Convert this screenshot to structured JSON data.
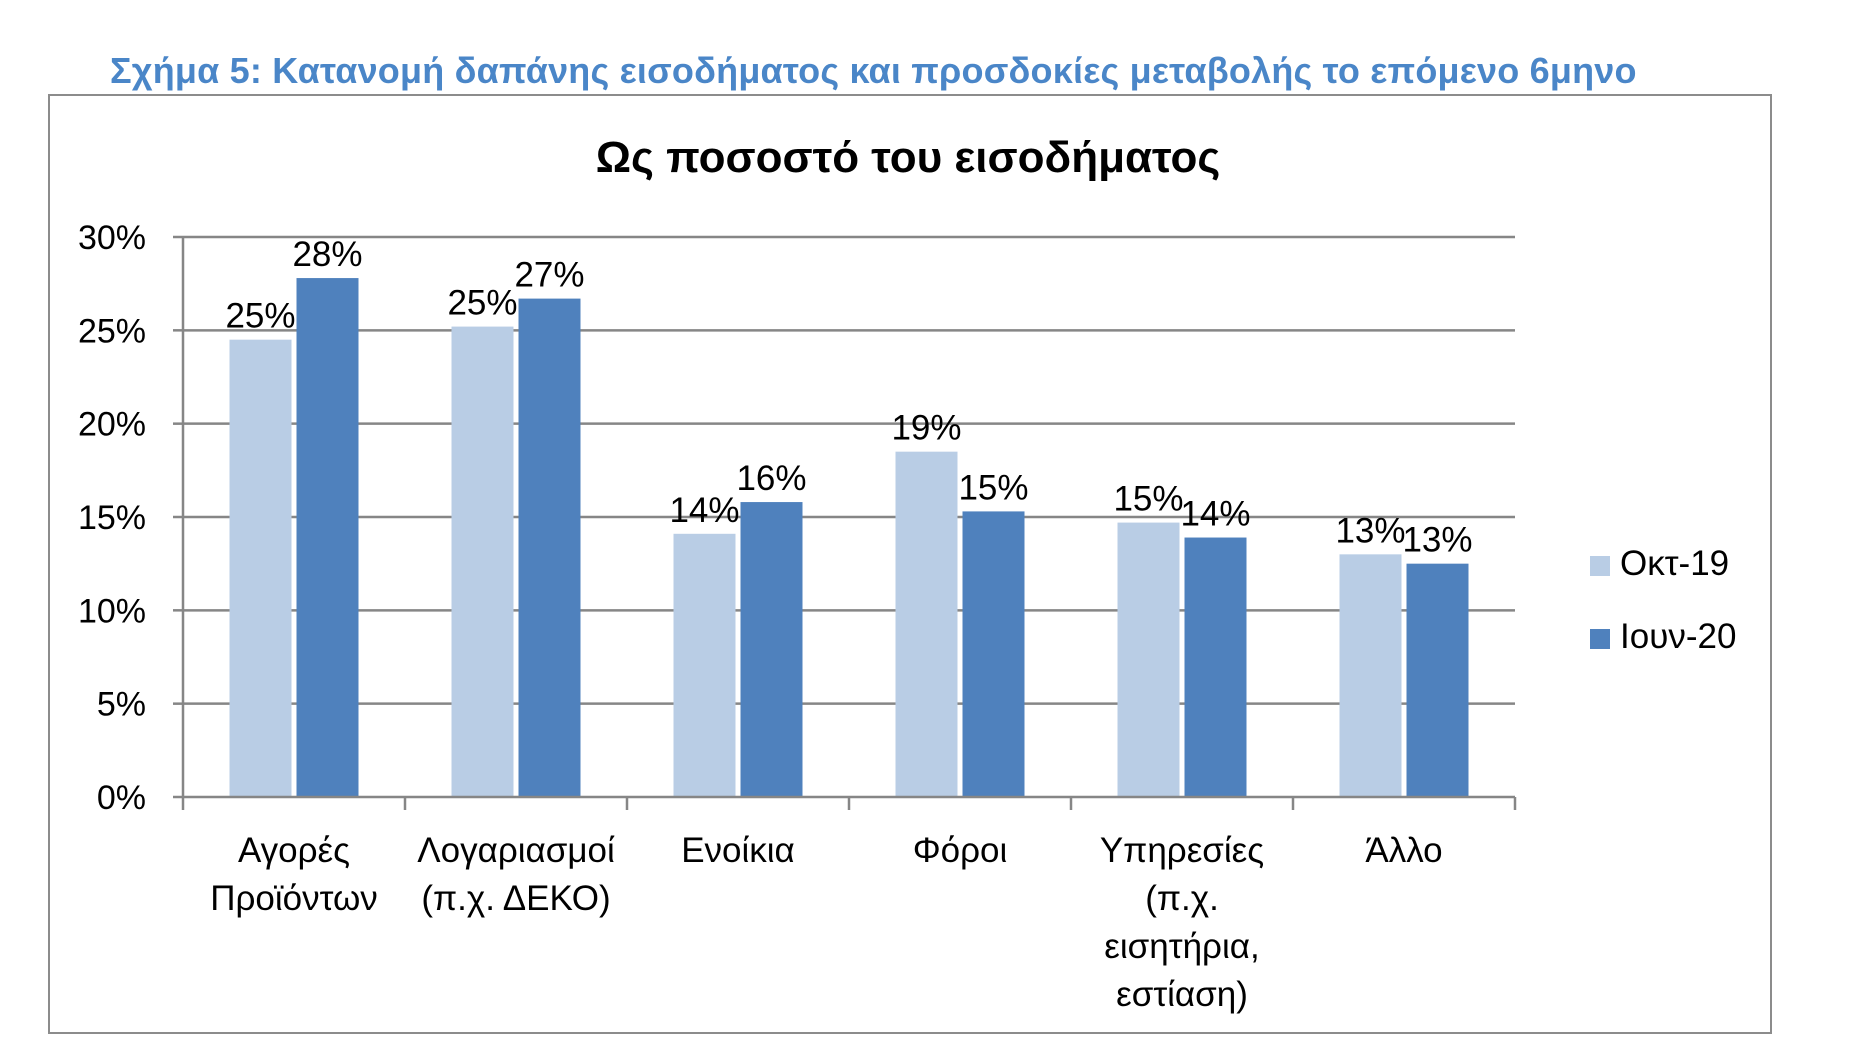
{
  "figure_caption": "Σχήμα 5: Κατανομή δαπάνης εισοδήματος και προσδοκίες μεταβολής το επόμενο 6μηνο",
  "caption_color": "#4a86c8",
  "chart_data": {
    "type": "bar",
    "title": "Ως ποσοστό του εισοδήματος",
    "xlabel": "",
    "ylabel": "",
    "categories": [
      [
        "Αγορές",
        "Προϊόντων"
      ],
      [
        "Λογαριασμοί",
        "(π.χ. ΔΕΚΟ)"
      ],
      [
        "Ενοίκια"
      ],
      [
        "Φόροι"
      ],
      [
        "Υπηρεσίες",
        "(π.χ.",
        "εισητήρια,",
        "εστίαση)"
      ],
      [
        "Άλλο"
      ]
    ],
    "series": [
      {
        "name": "Οκτ-19",
        "color": "#b9cde5",
        "values": [
          24.5,
          25.2,
          14.1,
          18.5,
          14.7,
          13.0
        ],
        "labels": [
          "25%",
          "25%",
          "14%",
          "19%",
          "15%",
          "13%"
        ]
      },
      {
        "name": "Ιουν-20",
        "color": "#4f81bd",
        "values": [
          27.8,
          26.7,
          15.8,
          15.3,
          13.9,
          12.5
        ],
        "labels": [
          "28%",
          "27%",
          "16%",
          "15%",
          "14%",
          "13%"
        ]
      }
    ],
    "ylim": [
      0,
      30
    ],
    "yticks": [
      0,
      5,
      10,
      15,
      20,
      25,
      30
    ],
    "ytick_labels": [
      "0%",
      "5%",
      "10%",
      "15%",
      "20%",
      "25%",
      "30%"
    ],
    "grid": true,
    "grid_color": "#868686",
    "legend_position": "right"
  }
}
